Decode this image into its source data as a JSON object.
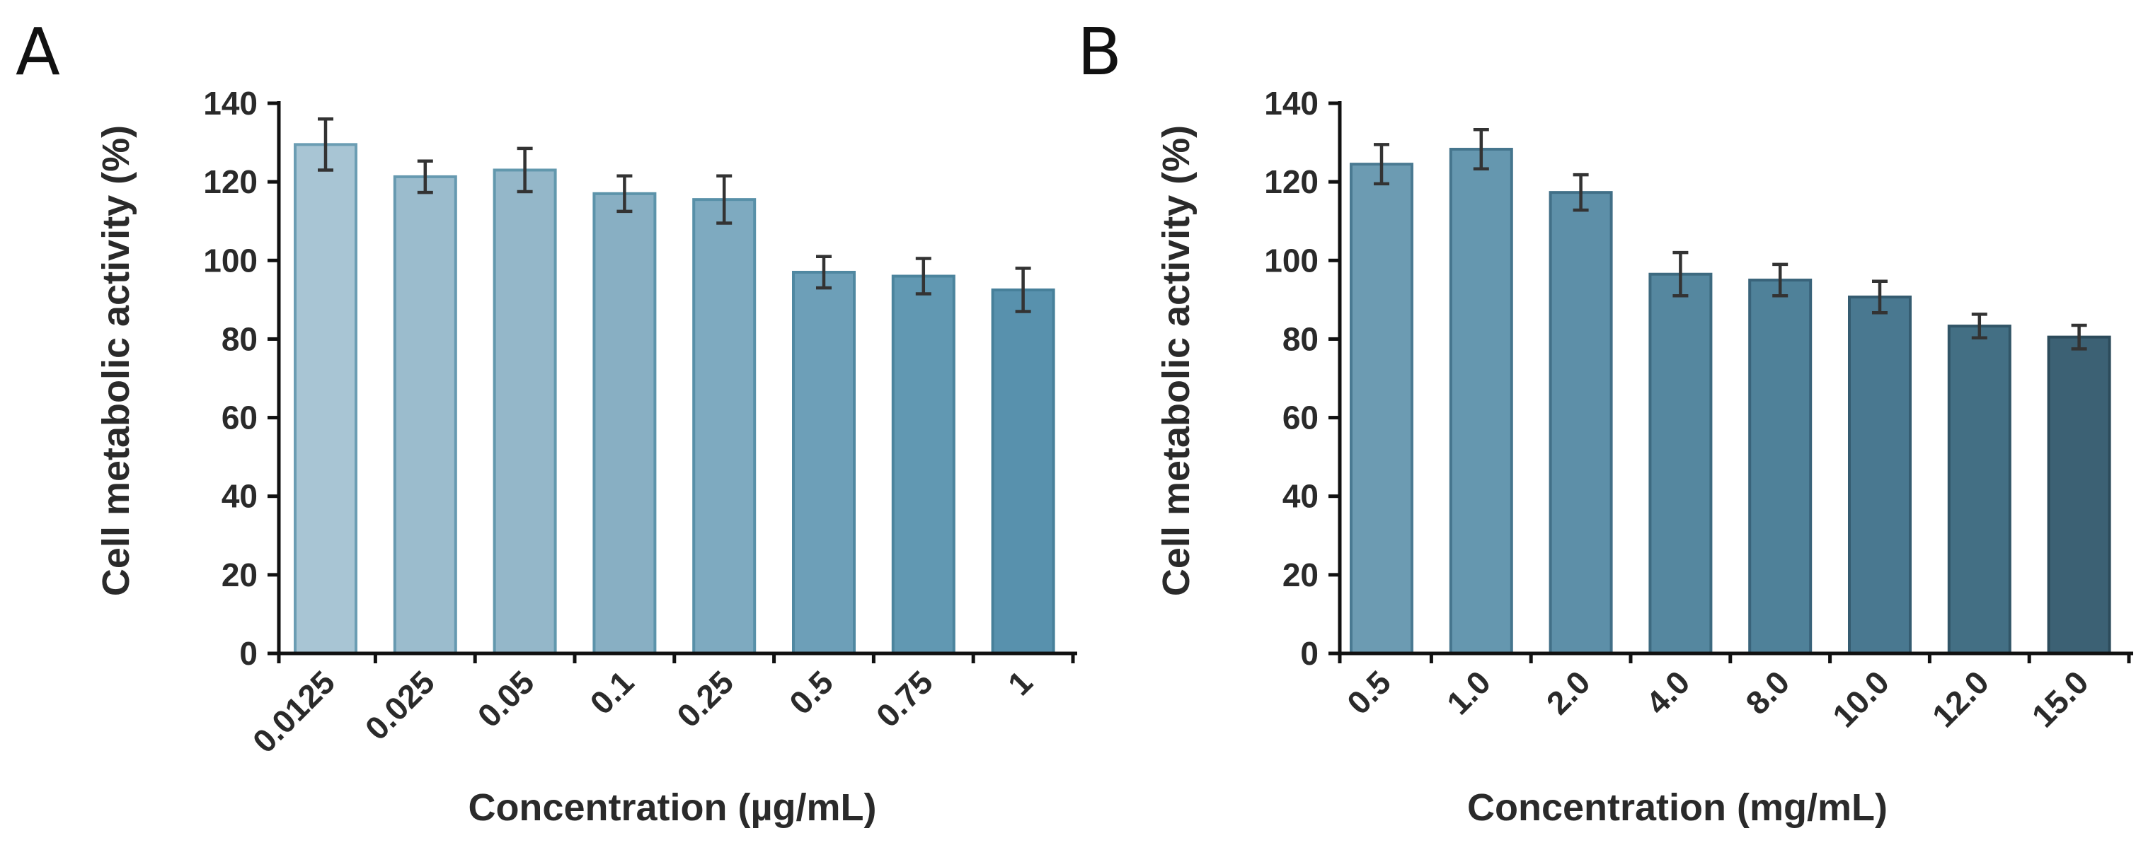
{
  "chart_data": [
    {
      "panel": "A",
      "type": "bar",
      "xlabel": "Concentration (µg/mL)",
      "ylabel": "Cell metabolic activity (%)",
      "ylim": [
        0,
        140
      ],
      "yticks": [
        "0",
        "20",
        "40",
        "60",
        "80",
        "100",
        "120",
        "140"
      ],
      "categories": [
        "0.0125",
        "0.025",
        "0.05",
        "0.1",
        "0.25",
        "0.5",
        "0.75",
        "1"
      ],
      "values": [
        129.5,
        121.3,
        123.0,
        117.0,
        115.5,
        97.0,
        96.0,
        92.5
      ],
      "errors": [
        6.5,
        4.0,
        5.5,
        4.5,
        6.0,
        4.0,
        4.5,
        5.5
      ],
      "bar_colors": [
        "#a8c5d4",
        "#9bbccd",
        "#94b7c9",
        "#88afc3",
        "#7eaac0",
        "#6d9fb8",
        "#6198b2",
        "#5891ad"
      ],
      "bar_edge_colors": [
        "#6b9db3",
        "#6699b0",
        "#6298ad",
        "#5c93aa",
        "#5890a8",
        "#5088a1",
        "#4b849d",
        "#47809a"
      ],
      "grid": false,
      "legend": "none"
    },
    {
      "panel": "B",
      "type": "bar",
      "xlabel": "Concentration (mg/mL)",
      "ylabel": "Cell metabolic activity (%)",
      "ylim": [
        0,
        140
      ],
      "yticks": [
        "0",
        "20",
        "40",
        "60",
        "80",
        "100",
        "120",
        "140"
      ],
      "categories": [
        "0.5",
        "1.0",
        "2.0",
        "4.0",
        "8.0",
        "10.0",
        "12.0",
        "15.0"
      ],
      "values": [
        124.5,
        128.3,
        117.3,
        96.5,
        95.0,
        90.7,
        83.3,
        80.5
      ],
      "errors": [
        5.0,
        5.0,
        4.5,
        5.5,
        4.0,
        4.0,
        3.0,
        3.0
      ],
      "bar_colors": [
        "#6c9bb2",
        "#6597af",
        "#5d8fa8",
        "#55879f",
        "#4f8199",
        "#497890",
        "#436f84",
        "#3c6174"
      ],
      "bar_edge_colors": [
        "#4a7a92",
        "#45758d",
        "#416f87",
        "#3d6a80",
        "#39637a",
        "#355c71",
        "#315567",
        "#2c4b5b"
      ],
      "grid": false,
      "legend": "none"
    }
  ]
}
